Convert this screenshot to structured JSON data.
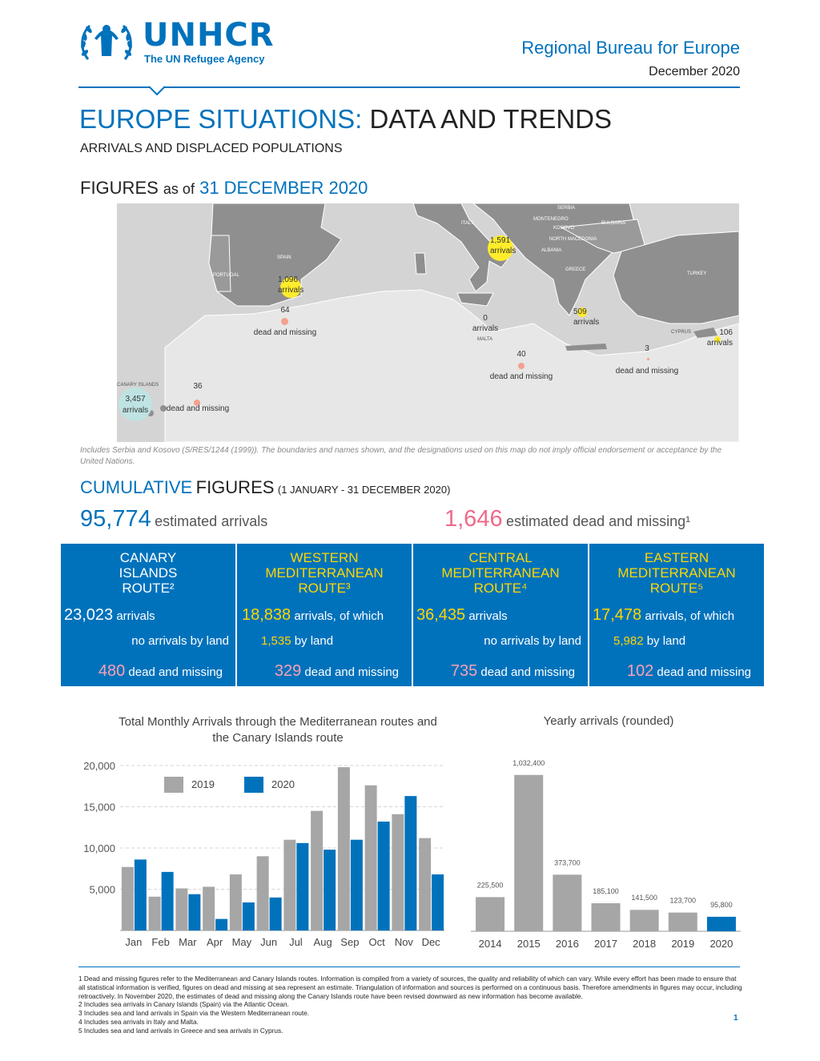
{
  "header": {
    "logo_name": "UNHCR",
    "logo_sub": "The UN Refugee Agency",
    "bureau": "Regional Bureau for Europe",
    "date": "December 2020"
  },
  "title": {
    "part1": "EUROPE SITUATIONS:",
    "part2": "DATA AND TRENDS",
    "subtitle": "ARRIVALS AND DISPLACED POPULATIONS",
    "figures_label": "FIGURES",
    "as_of": "as of",
    "as_of_date": "31 DECEMBER 2020"
  },
  "map": {
    "countries": [
      "ITALY",
      "SERBIA",
      "MONTENEGRO",
      "KOSOVO",
      "BULGARIA",
      "NORTH MACEDONIA",
      "ALBANIA",
      "GREECE",
      "TURKEY",
      "SPAIN",
      "PORTUGAL",
      "MALTA",
      "CYPRUS",
      "CANARY ISLANDS"
    ],
    "labels": [
      {
        "value": "1,591",
        "unit": "arrivals"
      },
      {
        "value": "1,096",
        "unit": "arrivals"
      },
      {
        "value": "64",
        "unit": "dead and missing"
      },
      {
        "value": "0",
        "unit": "arrivals"
      },
      {
        "value": "509",
        "unit": "arrivals"
      },
      {
        "value": "106",
        "unit": "arrivals"
      },
      {
        "value": "40",
        "unit": "dead and missing"
      },
      {
        "value": "3",
        "unit": "dead and missing"
      },
      {
        "value": "36",
        "unit": "dead and missing"
      },
      {
        "value": "3,457",
        "unit": "arrivals"
      }
    ],
    "note": "Includes Serbia and Kosovo (S/RES/1244 (1999)). The boundaries and names shown, and the designations used on this map do not imply official endorsement or acceptance by the United Nations."
  },
  "cumulative": {
    "word1": "CUMULATIVE",
    "word2": "FIGURES",
    "range": "(1 JANUARY - 31 DECEMBER 2020)",
    "arrivals_value": "95,774",
    "arrivals_label": "estimated arrivals",
    "dead_value": "1,646",
    "dead_label": "estimated dead and missing¹"
  },
  "routes": [
    {
      "title": "CANARY ISLANDS ROUTE²",
      "arrivals": "23,023",
      "arrivals_label": "arrivals",
      "land_value": "",
      "land_label": "no arrivals by land",
      "dead": "480",
      "dead_label": "dead and missing"
    },
    {
      "title": "WESTERN MEDITERRANEAN ROUTE³",
      "arrivals": "18,838",
      "arrivals_label": "arrivals, of which",
      "land_value": "1,535",
      "land_label": "by land",
      "dead": "329",
      "dead_label": "dead and missing"
    },
    {
      "title": "CENTRAL MEDITERRANEAN ROUTE⁴",
      "arrivals": "36,435",
      "arrivals_label": "arrivals",
      "land_value": "",
      "land_label": "no arrivals by land",
      "dead": "735",
      "dead_label": "dead and missing"
    },
    {
      "title": "EASTERN MEDITERRANEAN ROUTE⁵",
      "arrivals": "17,478",
      "arrivals_label": "arrivals, of which",
      "land_value": "5,982",
      "land_label": "by land",
      "dead": "102",
      "dead_label": "dead and missing"
    }
  ],
  "colors": {
    "accent": "#0072bc",
    "pink": "#ef6a8a",
    "gray": "#a6a6a6",
    "yellow": "#ffd700"
  },
  "chart_data": [
    {
      "type": "bar",
      "title": "Total Monthly Arrivals through the Mediterranean routes and the Canary Islands route",
      "categories": [
        "Jan",
        "Feb",
        "Mar",
        "Apr",
        "May",
        "Jun",
        "Jul",
        "Aug",
        "Sep",
        "Oct",
        "Nov",
        "Dec"
      ],
      "series": [
        {
          "name": "2019",
          "color": "#a6a6a6",
          "values": [
            7700,
            4100,
            5100,
            5300,
            6800,
            9000,
            11000,
            14500,
            19800,
            17600,
            14100,
            11200
          ]
        },
        {
          "name": "2020",
          "color": "#0072bc",
          "values": [
            8600,
            7100,
            4400,
            1400,
            3400,
            4000,
            10600,
            9800,
            11000,
            13200,
            16300,
            6800
          ]
        }
      ],
      "y_ticks": [
        "5,000",
        "10,000",
        "15,000",
        "20,000"
      ],
      "ylim": [
        0,
        20000
      ],
      "legend": "top-left",
      "grid": true
    },
    {
      "type": "bar",
      "title": "Yearly arrivals (rounded)",
      "categories": [
        "2014",
        "2015",
        "2016",
        "2017",
        "2018",
        "2019",
        "2020"
      ],
      "values": [
        225500,
        1032400,
        373700,
        185100,
        141500,
        123700,
        95800
      ],
      "labels": [
        "225,500",
        "1,032,400",
        "373,700",
        "185,100",
        "141,500",
        "123,700",
        "95,800"
      ],
      "highlight": "2020",
      "ylim": [
        0,
        1100000
      ]
    }
  ],
  "footnotes": [
    "1 Dead and missing figures refer to the Mediterranean and Canary Islands routes. Information is compiled from a variety of sources, the quality and reliability of which can vary. While every effort has been made to ensure that all statistical information is verified, figures on dead and missing at sea represent an estimate. Triangulation of information and sources is performed on a continuous basis. Therefore amendments in figures may occur, including retroactively. In November 2020, the estimates of dead and missing along the Canary Islands route have been revised downward as new information has become available.",
    "2 Includes sea arrivals in Canary Islands (Spain) via the Atlantic Ocean.",
    "3 Includes sea and land arrivals in Spain via the Western Mediterranean route.",
    "4 Includes sea arrivals in Italy and Malta.",
    "5 Includes sea and land arrivals in Greece and sea arrivals in Cyprus."
  ],
  "page_number": "1"
}
